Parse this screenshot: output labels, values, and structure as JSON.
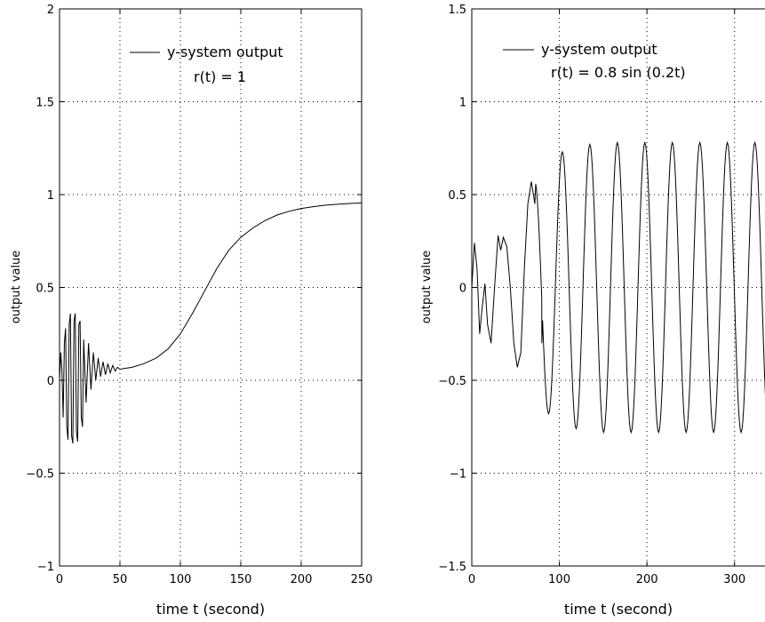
{
  "chart_data": [
    {
      "type": "line",
      "xlabel": "time t (second)",
      "ylabel": "output value",
      "xlim": [
        0,
        250
      ],
      "ylim": [
        -1,
        2
      ],
      "xticks": [
        "0",
        "50",
        "100",
        "150",
        "200",
        "250"
      ],
      "yticks": [
        "−1",
        "−0.5",
        "0",
        "0.5",
        "1",
        "1.5",
        "2"
      ],
      "grid": true,
      "legend_position": "top-right",
      "legend": [
        "y-system output",
        "r(t) = 1"
      ],
      "series": [
        {
          "name": "y-system output",
          "x": [
            0,
            1,
            2,
            3,
            4,
            5,
            6,
            7,
            8,
            9,
            10,
            11,
            12,
            13,
            14,
            15,
            16,
            17,
            18,
            19,
            20,
            22,
            24,
            26,
            28,
            30,
            32,
            34,
            36,
            38,
            40,
            42,
            44,
            46,
            48,
            50,
            55,
            60,
            70,
            80,
            90,
            100,
            110,
            120,
            130,
            140,
            150,
            160,
            170,
            180,
            190,
            200,
            210,
            220,
            230,
            240,
            250
          ],
          "values": [
            0,
            0.15,
            0.05,
            -0.2,
            0.2,
            0.28,
            -0.25,
            -0.32,
            0.3,
            0.36,
            -0.3,
            -0.34,
            0.32,
            0.36,
            -0.28,
            -0.33,
            0.3,
            0.32,
            -0.2,
            -0.25,
            0.22,
            -0.12,
            0.2,
            -0.05,
            0.15,
            0.0,
            0.12,
            0.02,
            0.1,
            0.03,
            0.09,
            0.04,
            0.08,
            0.05,
            0.07,
            0.06,
            0.065,
            0.07,
            0.09,
            0.12,
            0.17,
            0.25,
            0.36,
            0.48,
            0.6,
            0.7,
            0.77,
            0.82,
            0.86,
            0.89,
            0.91,
            0.925,
            0.935,
            0.943,
            0.948,
            0.952,
            0.955
          ]
        }
      ]
    },
    {
      "type": "line",
      "xlabel": "time t (second)",
      "ylabel": "output value",
      "xlim": [
        0,
        350
      ],
      "ylim": [
        -1.5,
        1.5
      ],
      "xticks": [
        "0",
        "100",
        "200",
        "300"
      ],
      "yticks": [
        "−1.5",
        "−1",
        "−0.5",
        "0",
        "0.5",
        "1",
        "1.5"
      ],
      "grid": true,
      "legend_position": "top-left",
      "legend": [
        "y-system output",
        "r(t) = 0.8 sin (0.2t)"
      ],
      "series": [
        {
          "name": "y-system output",
          "x": [
            0,
            3,
            6,
            9,
            12,
            15,
            18,
            22,
            26,
            30,
            33,
            36,
            40,
            44,
            48,
            52,
            56,
            60,
            64,
            68,
            72,
            80
          ],
          "values": [
            0,
            0.24,
            0.1,
            -0.25,
            -0.1,
            0.02,
            -0.2,
            -0.3,
            0.0,
            0.28,
            0.2,
            0.27,
            0.22,
            0.0,
            -0.3,
            -0.43,
            -0.35,
            0.1,
            0.45,
            0.57,
            0.45,
            -0.3
          ]
        }
      ],
      "oscillation": {
        "start": 72,
        "period": 31.4,
        "peaks": [
          0.57,
          0.73,
          0.77,
          0.78,
          0.78,
          0.78,
          0.78,
          0.78,
          0.78,
          0.78
        ],
        "troughs": [
          -0.68,
          -0.76,
          -0.78,
          -0.78,
          -0.78,
          -0.78,
          -0.78,
          -0.78,
          -0.78,
          -0.78
        ]
      }
    }
  ]
}
